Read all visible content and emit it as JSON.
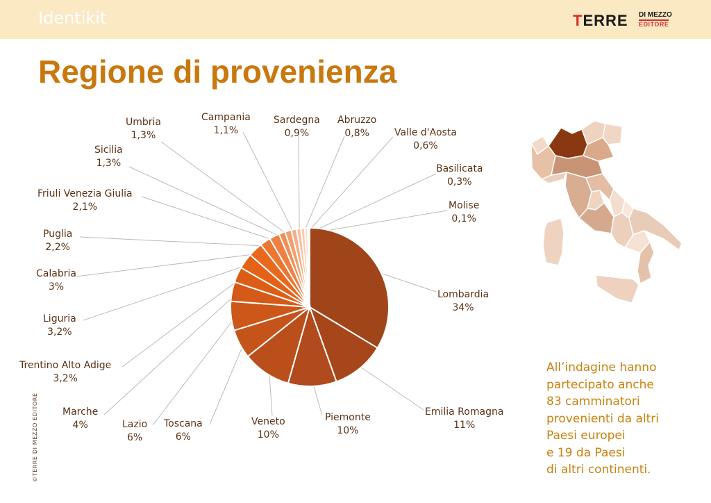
{
  "header": {
    "section": "Identikit"
  },
  "brand": {
    "main_first": "T",
    "main_rest": "ERRE",
    "sub1": "DI MEZZO",
    "sub2": "EDITORE"
  },
  "title": "Regione di provenienza",
  "copyright": "©TERRE DI MEZZO EDITORE",
  "note": {
    "lines": [
      "All’indagine hanno",
      "partecipato anche",
      "83 camminatori",
      "provenienti da altri",
      "Paesi europei",
      "e 19 da Paesi",
      "di altri continenti."
    ]
  },
  "chart_data": {
    "type": "pie",
    "title": "Regione di provenienza",
    "unit": "%",
    "slices": [
      {
        "name": "Lombardia",
        "label": "34%",
        "value": 34,
        "color": "#a0441a"
      },
      {
        "name": "Emilia Romagna",
        "label": "11%",
        "value": 11,
        "color": "#a8461b"
      },
      {
        "name": "Piemonte",
        "label": "10%",
        "value": 10,
        "color": "#b14a1c"
      },
      {
        "name": "Veneto",
        "label": "10%",
        "value": 10,
        "color": "#bb4f1c"
      },
      {
        "name": "Toscana",
        "label": "6%",
        "value": 6,
        "color": "#c5541b"
      },
      {
        "name": "Lazio",
        "label": "6%",
        "value": 6,
        "color": "#cd5719"
      },
      {
        "name": "Marche",
        "label": "4%",
        "value": 4,
        "color": "#d55a17"
      },
      {
        "name": "Trentino Alto Adige",
        "label": "3,2%",
        "value": 3.2,
        "color": "#dc5e16"
      },
      {
        "name": "Liguria",
        "label": "3,2%",
        "value": 3.2,
        "color": "#e36216"
      },
      {
        "name": "Calabria",
        "label": "3%",
        "value": 3,
        "color": "#e8691d"
      },
      {
        "name": "Puglia",
        "label": "2,2%",
        "value": 2.2,
        "color": "#ec7530"
      },
      {
        "name": "Friuli Venezia Giulia",
        "label": "2,1%",
        "value": 2.1,
        "color": "#ee8045"
      },
      {
        "name": "Sicilia",
        "label": "1,3%",
        "value": 1.3,
        "color": "#f08e58"
      },
      {
        "name": "Umbria",
        "label": "1,3%",
        "value": 1.3,
        "color": "#f29d6e"
      },
      {
        "name": "Campania",
        "label": "1,1%",
        "value": 1.1,
        "color": "#f4ad85"
      },
      {
        "name": "Sardegna",
        "label": "0,9%",
        "value": 0.9,
        "color": "#f6bf9e"
      },
      {
        "name": "Abruzzo",
        "label": "0,8%",
        "value": 0.8,
        "color": "#f8cdb2"
      },
      {
        "name": "Valle d'Aosta",
        "label": "0,6%",
        "value": 0.6,
        "color": "#f9d9c5"
      },
      {
        "name": "Basilicata",
        "label": "0,3%",
        "value": 0.3,
        "color": "#fbe3d4"
      },
      {
        "name": "Molise",
        "label": "0,1%",
        "value": 0.1,
        "color": "#fcece2"
      }
    ]
  }
}
